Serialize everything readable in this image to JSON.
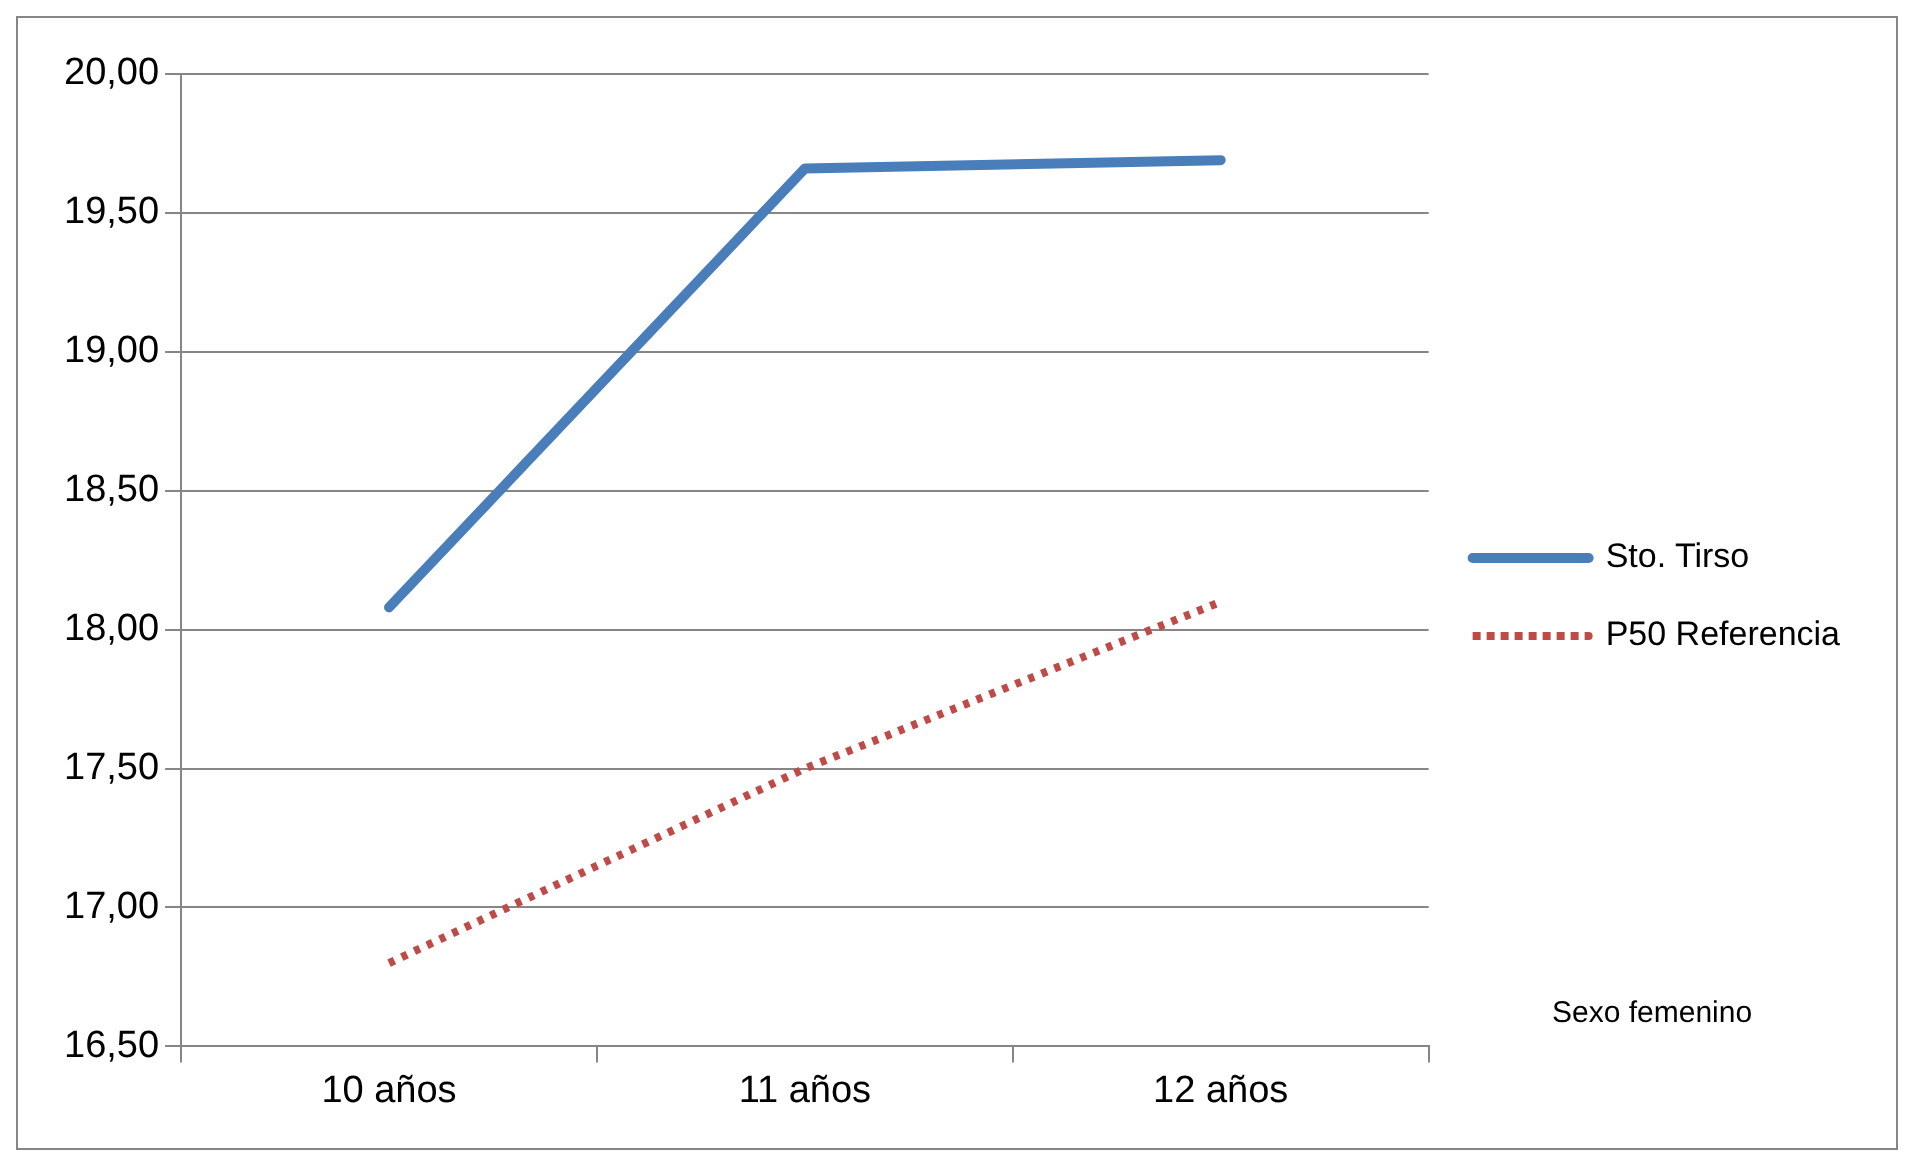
{
  "chart_data": {
    "type": "line",
    "categories": [
      "10 años",
      "11 años",
      "12 años"
    ],
    "series": [
      {
        "name": "Sto. Tirso",
        "color": "#4a7ebb",
        "values": [
          18.08,
          19.66,
          19.69
        ],
        "line_style": "solid"
      },
      {
        "name": "P50 Referencia",
        "color": "#be4b48",
        "values": [
          16.8,
          17.5,
          18.1
        ],
        "line_style": "dotted"
      }
    ],
    "ylim": [
      16.5,
      20
    ],
    "yticks": [
      {
        "value": 16.5,
        "label": "16,50"
      },
      {
        "value": 17,
        "label": "17,00"
      },
      {
        "value": 17.5,
        "label": "17,50"
      },
      {
        "value": 18,
        "label": "18,00"
      },
      {
        "value": 18.5,
        "label": "18,50"
      },
      {
        "value": 19,
        "label": "19,00"
      },
      {
        "value": 19.5,
        "label": "19,50"
      },
      {
        "value": 20,
        "label": "20,00"
      }
    ],
    "grid": "y",
    "legend": "right",
    "marker": "none",
    "annotations": [
      "Sexo femenino"
    ]
  }
}
